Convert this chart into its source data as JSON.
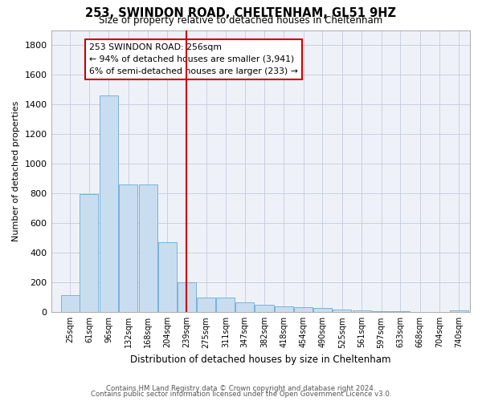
{
  "title": "253, SWINDON ROAD, CHELTENHAM, GL51 9HZ",
  "subtitle": "Size of property relative to detached houses in Cheltenham",
  "xlabel": "Distribution of detached houses by size in Cheltenham",
  "ylabel": "Number of detached properties",
  "bar_color": "#c9ddf0",
  "bar_edge_color": "#6aaad4",
  "background_color": "#eef2f8",
  "grid_color": "#c8cfe0",
  "vline_x": 257,
  "vline_color": "#cc0000",
  "annotation_title": "253 SWINDON ROAD: 256sqm",
  "annotation_line1": "← 94% of detached houses are smaller (3,941)",
  "annotation_line2": "6% of semi-detached houses are larger (233) →",
  "annotation_box_color": "#cc0000",
  "categories": [
    "25sqm",
    "61sqm",
    "96sqm",
    "132sqm",
    "168sqm",
    "204sqm",
    "239sqm",
    "275sqm",
    "311sqm",
    "347sqm",
    "382sqm",
    "418sqm",
    "454sqm",
    "490sqm",
    "525sqm",
    "561sqm",
    "597sqm",
    "633sqm",
    "668sqm",
    "704sqm",
    "740sqm"
  ],
  "bin_centers": [
    43,
    78,
    114,
    150,
    186,
    222,
    257,
    293,
    329,
    364,
    400,
    436,
    472,
    507,
    543,
    579,
    615,
    650,
    686,
    722,
    758
  ],
  "bin_width": 34,
  "values": [
    115,
    795,
    1460,
    860,
    858,
    470,
    200,
    100,
    100,
    65,
    50,
    40,
    35,
    30,
    20,
    10,
    8,
    5,
    3,
    2,
    15
  ],
  "ylim": [
    0,
    1900
  ],
  "yticks": [
    0,
    200,
    400,
    600,
    800,
    1000,
    1200,
    1400,
    1600,
    1800
  ],
  "xlim_left": 8,
  "xlim_right": 778,
  "footer_line1": "Contains HM Land Registry data © Crown copyright and database right 2024.",
  "footer_line2": "Contains public sector information licensed under the Open Government Licence v3.0."
}
